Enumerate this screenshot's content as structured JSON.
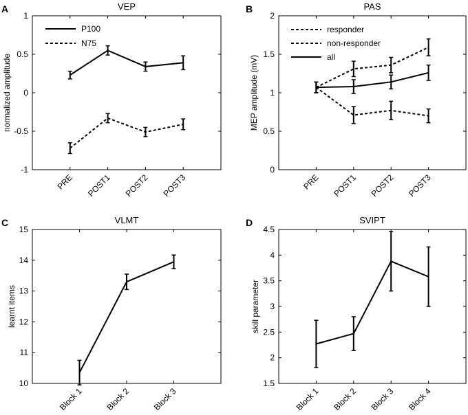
{
  "chart_data": [
    {
      "type": "line",
      "panel": "A",
      "title": "VEP",
      "xlabel": "",
      "ylabel": "normalized amplitude",
      "categories": [
        "PRE",
        "POST1",
        "POST2",
        "POST3"
      ],
      "ylim": [
        -1,
        1
      ],
      "yticks": [
        -1,
        -0.5,
        0,
        0.5,
        1
      ],
      "ytick_labels": [
        "-1",
        "-0.5",
        "0",
        "0.5",
        "1"
      ],
      "legend_position": "top-left",
      "series": [
        {
          "name": "P100",
          "style": "solid",
          "values": [
            0.23,
            0.55,
            0.34,
            0.39
          ],
          "errors": [
            0.05,
            0.06,
            0.06,
            0.09
          ]
        },
        {
          "name": "N75",
          "style": "dashed",
          "values": [
            -0.72,
            -0.33,
            -0.51,
            -0.41
          ],
          "errors": [
            0.07,
            0.06,
            0.06,
            0.07
          ]
        }
      ]
    },
    {
      "type": "line",
      "panel": "B",
      "title": "PAS",
      "xlabel": "",
      "ylabel": "MEP amplitude (mV)",
      "categories": [
        "PRE",
        "POST1",
        "POST2",
        "POST3"
      ],
      "ylim": [
        0,
        2
      ],
      "yticks": [
        0,
        0.5,
        1,
        1.5,
        2
      ],
      "ytick_labels": [
        "0",
        "0.5",
        "1",
        "1.5",
        "2"
      ],
      "legend_position": "top-left",
      "series": [
        {
          "name": "responder",
          "style": "dashed",
          "values": [
            1.07,
            1.31,
            1.36,
            1.59
          ],
          "errors": [
            0.07,
            0.1,
            0.1,
            0.11
          ]
        },
        {
          "name": "non-responder",
          "style": "dashed",
          "values": [
            1.07,
            0.71,
            0.77,
            0.7
          ],
          "errors": [
            0.07,
            0.11,
            0.12,
            0.09
          ]
        },
        {
          "name": "all",
          "style": "solid",
          "values": [
            1.07,
            1.08,
            1.14,
            1.26
          ],
          "errors": [
            0.07,
            0.09,
            0.09,
            0.1
          ]
        }
      ]
    },
    {
      "type": "line",
      "panel": "C",
      "title": "VLMT",
      "xlabel": "",
      "ylabel": "learnt items",
      "categories": [
        "Block 1",
        "Block 2",
        "Block 3"
      ],
      "ylim": [
        10,
        15
      ],
      "yticks": [
        10,
        11,
        12,
        13,
        14,
        15
      ],
      "ytick_labels": [
        "10",
        "11",
        "12",
        "13",
        "14",
        "15"
      ],
      "series": [
        {
          "name": "VLMT",
          "style": "solid",
          "values": [
            10.35,
            13.3,
            13.95
          ],
          "errors": [
            0.4,
            0.25,
            0.22
          ]
        }
      ]
    },
    {
      "type": "line",
      "panel": "D",
      "title": "SVIPT",
      "xlabel": "",
      "ylabel": "skill parameter",
      "categories": [
        "Block 1",
        "Block 2",
        "Block 3",
        "Block 4"
      ],
      "ylim": [
        1.5,
        4.5
      ],
      "yticks": [
        1.5,
        2,
        2.5,
        3,
        3.5,
        4,
        4.5
      ],
      "ytick_labels": [
        "1.5",
        "2",
        "2.5",
        "3",
        "3.5",
        "4",
        "4.5"
      ],
      "series": [
        {
          "name": "SVIPT",
          "style": "solid",
          "values": [
            2.27,
            2.47,
            3.88,
            3.58
          ],
          "errors": [
            0.46,
            0.33,
            0.58,
            0.58
          ]
        }
      ]
    }
  ]
}
